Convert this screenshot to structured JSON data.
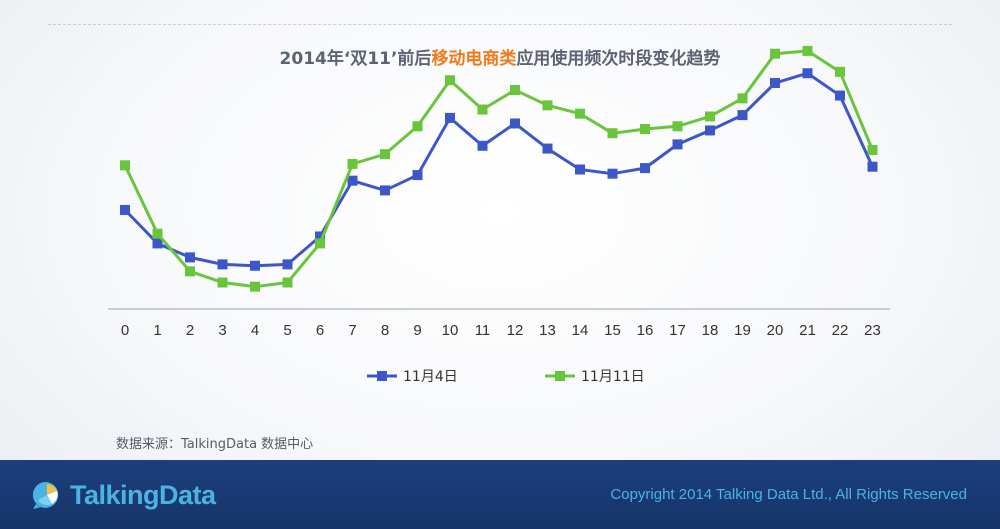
{
  "title": {
    "prefix": "2014年‘双11’前后",
    "highlight": "移动电商类",
    "suffix": "应用使用频次时段变化趋势"
  },
  "source": "数据来源：TalkingData 数据中心",
  "footer": {
    "logo_text": "TalkingData",
    "copyright": "Copyright 2014 Talking Data Ltd., All Rights Reserved"
  },
  "colors": {
    "series_blue": "#3d56c8",
    "series_green": "#69c53c",
    "highlight": "#f07a1a",
    "footer_bg": "#1c3f7e",
    "footer_text": "#4ab3e2"
  },
  "chart_data": {
    "type": "line",
    "title": "2014年‘双11’前后移动电商类应用使用频次时段变化趋势",
    "xlabel": "",
    "ylabel": "",
    "x": [
      "0",
      "1",
      "2",
      "3",
      "4",
      "5",
      "6",
      "7",
      "8",
      "9",
      "10",
      "11",
      "12",
      "13",
      "14",
      "15",
      "16",
      "17",
      "18",
      "19",
      "20",
      "21",
      "22",
      "23"
    ],
    "ylim": [
      0,
      100
    ],
    "grid": false,
    "legend": "bottom",
    "series": [
      {
        "name": "11月4日",
        "color": "#3d56c8",
        "values": [
          35.5,
          23.5,
          18.5,
          16.0,
          15.5,
          16.0,
          26.0,
          46.0,
          42.5,
          48.0,
          68.5,
          58.5,
          66.5,
          57.5,
          50.0,
          48.5,
          50.5,
          59.0,
          64.0,
          69.5,
          81.0,
          84.5,
          76.5,
          51.0
        ]
      },
      {
        "name": "11月11日",
        "color": "#69c53c",
        "values": [
          51.5,
          27.0,
          13.5,
          9.5,
          8.0,
          9.5,
          23.5,
          52.0,
          55.5,
          65.5,
          82.0,
          71.5,
          78.5,
          73.0,
          70.0,
          63.0,
          64.5,
          65.5,
          69.0,
          75.5,
          91.5,
          92.5,
          85.0,
          57.0
        ]
      }
    ]
  }
}
